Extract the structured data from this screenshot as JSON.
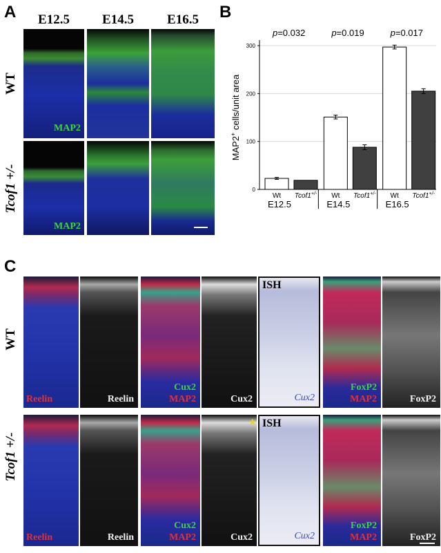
{
  "figure": {
    "panel_a": {
      "label": "A",
      "columns": [
        "E12.5",
        "E14.5",
        "E16.5"
      ],
      "rows": [
        "WT",
        "Tcof1 +/-"
      ],
      "stain_label": "MAP2"
    },
    "panel_b": {
      "label": "B"
    },
    "panel_c": {
      "label": "C",
      "rows": [
        "WT",
        "Tcof1 +/-"
      ],
      "columns": [
        {
          "lines": [
            {
              "text": "Reelin",
              "color": "red"
            }
          ]
        },
        {
          "lines": [
            {
              "text": "Reelin",
              "color": "white"
            }
          ]
        },
        {
          "lines": [
            {
              "text": "Cux2",
              "color": "green"
            },
            {
              "text": "MAP2",
              "color": "red"
            }
          ]
        },
        {
          "lines": [
            {
              "text": "Cux2",
              "color": "white"
            }
          ]
        },
        {
          "lines": [
            {
              "text": "Cux2",
              "color": "blue"
            }
          ],
          "header": "ISH"
        },
        {
          "lines": [
            {
              "text": "FoxP2",
              "color": "green"
            },
            {
              "text": "MAP2",
              "color": "red"
            }
          ]
        },
        {
          "lines": [
            {
              "text": "FoxP2",
              "color": "white"
            }
          ]
        }
      ],
      "asterisk": "*"
    }
  },
  "chart_data": {
    "type": "bar",
    "ylabel_main": "MAP2",
    "ylabel_sup": "+",
    "ylabel_rest": " cells/unit area",
    "ylim": [
      0,
      300
    ],
    "yticks": [
      "0",
      "100",
      "200",
      "300"
    ],
    "groups": [
      "E12.5",
      "E14.5",
      "E16.5"
    ],
    "series": [
      {
        "name": "Wt",
        "color": "#ffffff",
        "values": [
          23,
          151,
          297
        ],
        "errors": [
          2,
          4,
          4
        ]
      },
      {
        "name": "Tcof1+/-",
        "color": "#404040",
        "values": [
          19,
          88,
          205
        ],
        "errors": [
          0,
          5,
          5
        ]
      }
    ],
    "series_labels": {
      "wt": "Wt",
      "mut_main": "Tcof1",
      "mut_sup": "+/-"
    },
    "pvalues": [
      "p=0.032",
      "p=0.019",
      "p=0.017"
    ],
    "grid": true
  }
}
